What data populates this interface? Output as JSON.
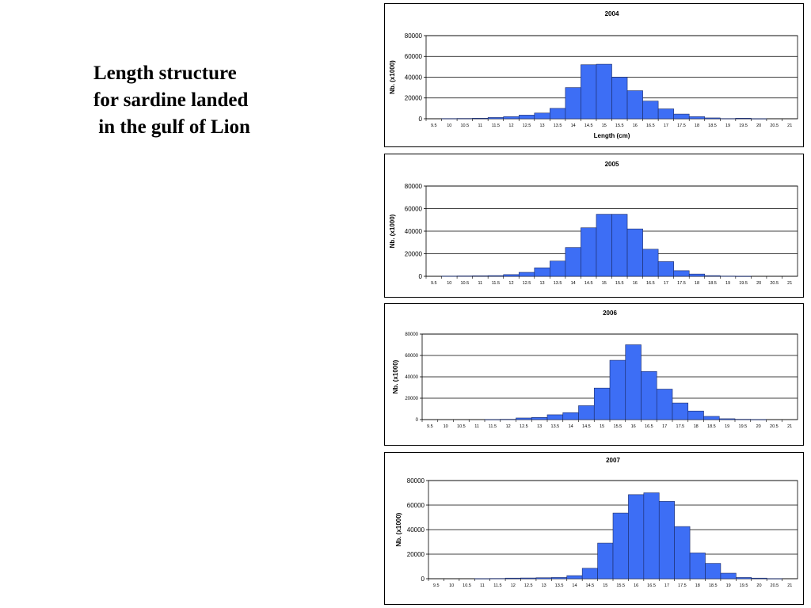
{
  "slide": {
    "title": "Length structure\nfor sardine landed\n in the gulf of Lion"
  },
  "colors": {
    "bar_fill": "#3d6ef5",
    "bar_stroke": "#1a2a66",
    "grid": "#000000"
  },
  "chart_data": [
    {
      "type": "bar",
      "title": "2004",
      "xlabel": "Length (cm)",
      "ylabel": "Nb. (x1000)",
      "ylim": [
        0,
        80000
      ],
      "yticks": [
        "0",
        "20000",
        "40000",
        "60000",
        "80000"
      ],
      "categories": [
        "9.5",
        "10",
        "10.5",
        "11",
        "11.5",
        "12",
        "12.5",
        "13",
        "13.5",
        "14",
        "14.5",
        "15",
        "15.5",
        "16",
        "16.5",
        "17",
        "17.5",
        "18",
        "18.5",
        "19",
        "19.5",
        "20",
        "20.5",
        "21"
      ],
      "values": [
        0,
        200,
        300,
        500,
        1200,
        2000,
        3500,
        5500,
        10000,
        30000,
        52000,
        52500,
        40000,
        27000,
        17000,
        9500,
        4500,
        2000,
        800,
        200,
        500,
        100,
        0,
        0
      ],
      "grid": true
    },
    {
      "type": "bar",
      "title": "2005",
      "xlabel": "",
      "ylabel": "Nb. (x1000)",
      "ylim": [
        0,
        80000
      ],
      "yticks": [
        "0",
        "20000",
        "40000",
        "60000",
        "80000"
      ],
      "categories": [
        "9.5",
        "10",
        "10.5",
        "11",
        "11.5",
        "12",
        "12.5",
        "13",
        "13.5",
        "14",
        "14.5",
        "15",
        "15.5",
        "16",
        "16.5",
        "17",
        "17.5",
        "18",
        "18.5",
        "19",
        "19.5",
        "20",
        "20.5",
        "21"
      ],
      "values": [
        0,
        200,
        300,
        400,
        600,
        1500,
        3500,
        7500,
        13500,
        25500,
        43000,
        55000,
        55000,
        42000,
        24000,
        13000,
        5000,
        2000,
        600,
        200,
        100,
        0,
        0,
        0
      ],
      "grid": true
    },
    {
      "type": "bar",
      "title": "2006",
      "xlabel": "",
      "ylabel": "Nb. (x1000)",
      "ylim": [
        0,
        80000
      ],
      "yticks": [
        "0",
        "20000",
        "40000",
        "60000",
        "80000"
      ],
      "categories": [
        "9.5",
        "10",
        "10.5",
        "11",
        "11.5",
        "12",
        "12.5",
        "13",
        "13.5",
        "14",
        "14.5",
        "15",
        "15.5",
        "16",
        "16.5",
        "17",
        "17.5",
        "18",
        "18.5",
        "19",
        "19.5",
        "20",
        "20.5",
        "21"
      ],
      "values": [
        0,
        0,
        0,
        0,
        100,
        300,
        1500,
        2000,
        4500,
        6500,
        13000,
        29500,
        55500,
        70000,
        45000,
        28500,
        15500,
        8000,
        3000,
        800,
        300,
        100,
        0,
        0
      ],
      "grid": true
    },
    {
      "type": "bar",
      "title": "2007",
      "xlabel": "",
      "ylabel": "Nb. (x1000)",
      "ylim": [
        0,
        80000
      ],
      "yticks": [
        "0",
        "20000",
        "40000",
        "60000",
        "80000"
      ],
      "categories": [
        "9.5",
        "10",
        "10.5",
        "11",
        "11.5",
        "12",
        "12.5",
        "13",
        "13.5",
        "14",
        "14.5",
        "15",
        "15.5",
        "16",
        "16.5",
        "17",
        "17.5",
        "18",
        "18.5",
        "19",
        "19.5",
        "20",
        "20.5",
        "21"
      ],
      "values": [
        0,
        0,
        0,
        100,
        200,
        500,
        600,
        800,
        1000,
        2500,
        8500,
        29000,
        53500,
        68500,
        70000,
        63000,
        42500,
        21000,
        12500,
        4500,
        1000,
        500,
        100,
        0
      ],
      "grid": true
    }
  ]
}
